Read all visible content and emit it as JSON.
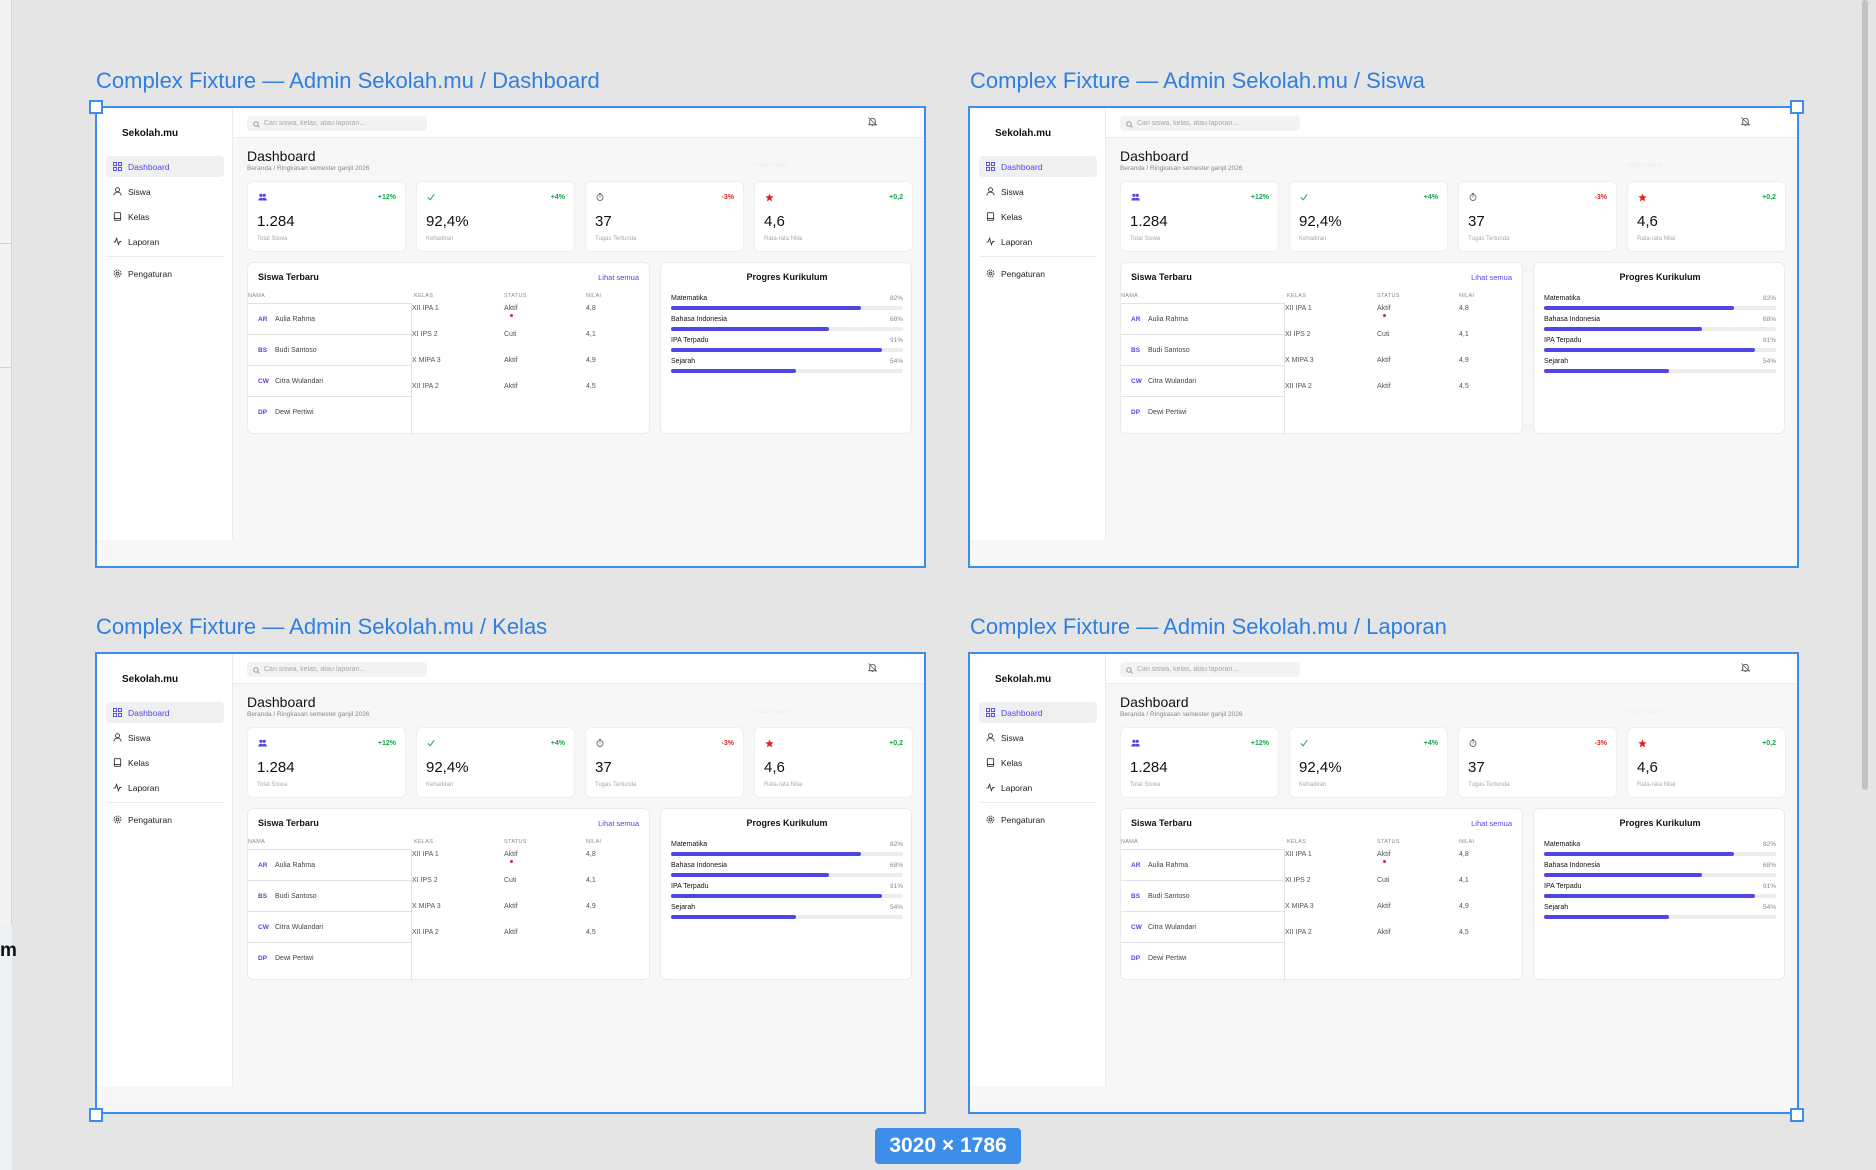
{
  "canvas": {
    "size_badge": "3020 × 1786",
    "left_fragment": "m"
  },
  "frames": [
    {
      "title": "Complex Fixture — Admin Sekolah.mu / Dashboard"
    },
    {
      "title": "Complex Fixture — Admin Sekolah.mu / Siswa"
    },
    {
      "title": "Complex Fixture — Admin Sekolah.mu / Kelas"
    },
    {
      "title": "Complex Fixture — Admin Sekolah.mu / Laporan"
    }
  ],
  "app": {
    "brand": "Sekolah.mu",
    "nav": [
      {
        "label": "Dashboard",
        "icon": "grid-icon",
        "active": true
      },
      {
        "label": "Siswa",
        "icon": "user-icon",
        "active": false
      },
      {
        "label": "Kelas",
        "icon": "book-icon",
        "active": false
      },
      {
        "label": "Laporan",
        "icon": "activity-icon",
        "active": false
      }
    ],
    "nav_bottom": {
      "label": "Pengaturan",
      "icon": "gear-icon"
    },
    "search_placeholder": "Cari siswa, kelas, atau laporan...",
    "page_title": "Dashboard",
    "breadcrumb": "Beranda / Ringkasan semester ganjil 2026",
    "ghost_button": "Unduh rapor",
    "stats": [
      {
        "icon": "users-icon",
        "delta": "+12%",
        "trend": "up",
        "value": "1.284",
        "label": "Total Siswa",
        "color": "#4f46e5"
      },
      {
        "icon": "check-icon",
        "delta": "+4%",
        "trend": "up",
        "value": "92,4%",
        "label": "Kehadiran",
        "color": "#16a34a"
      },
      {
        "icon": "clock-icon",
        "delta": "-3%",
        "trend": "down",
        "value": "37",
        "label": "Tugas Tertunda",
        "color": "#555555"
      },
      {
        "icon": "star-icon",
        "delta": "+0,2",
        "trend": "up",
        "value": "4,6",
        "label": "Rata-rata Nilai",
        "color": "#dc2626"
      }
    ],
    "students": {
      "title": "Siswa Terbaru",
      "link": "Lihat semua",
      "columns": [
        "NAMA",
        "KELAS",
        "STATUS",
        "NILAI"
      ],
      "rows": [
        {
          "initials": "AR",
          "name": "Aulia Rahma",
          "kelas": "XII IPA 1",
          "status": "Aktif",
          "nilai": "4,8"
        },
        {
          "initials": "BS",
          "name": "Budi Santoso",
          "kelas": "XI IPS 2",
          "status": "Cuti",
          "nilai": "4,1"
        },
        {
          "initials": "CW",
          "name": "Citra Wulandari",
          "kelas": "X MIPA 3",
          "status": "Aktif",
          "nilai": "4,9"
        },
        {
          "initials": "DP",
          "name": "Dewi Pertiwi",
          "kelas": "XII IPA 2",
          "status": "Aktif",
          "nilai": "4,5"
        }
      ]
    },
    "curriculum": {
      "title": "Progres Kurikulum",
      "items": [
        {
          "label": "Matematika",
          "value": 82,
          "display": "82%"
        },
        {
          "label": "Bahasa Indonesia",
          "value": 68,
          "display": "68%"
        },
        {
          "label": "IPA Terpadu",
          "value": 91,
          "display": "91%"
        },
        {
          "label": "Sejarah",
          "value": 54,
          "display": "54%"
        }
      ]
    }
  }
}
